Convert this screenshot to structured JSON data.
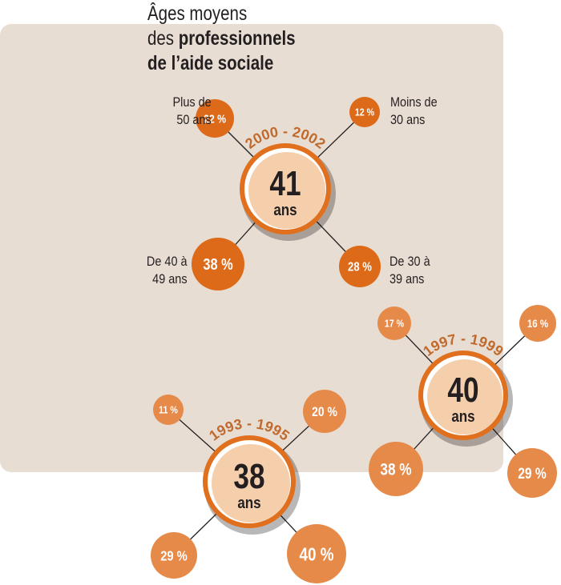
{
  "title": {
    "line1": "Âges moyens",
    "line2_prefix": "des ",
    "line2_bold": "professionnels",
    "line3": "de l’aide sociale"
  },
  "labels": {
    "over50": [
      "Plus de",
      "50 ans"
    ],
    "under30": [
      "Moins de",
      "30 ans"
    ],
    "from40to49": [
      "De 40 à",
      "49 ans"
    ],
    "from30to39": [
      "De 30 à",
      "39 ans"
    ]
  },
  "colors": {
    "panel": "#e8ddd3",
    "dark_orange": "#dd6a19",
    "light_orange": "#e68a4a",
    "center_fill": "#f5cfac",
    "center_ring": "#e0701e",
    "period_text": "#c06a2e",
    "line": "#231f20"
  },
  "chart_data": {
    "type": "bubble",
    "unit_center": "ans",
    "unit_pct": "%",
    "categories": [
      "Plus de 50 ans",
      "Moins de 30 ans",
      "De 40 à 49 ans",
      "De 30 à 39 ans"
    ],
    "series": [
      {
        "period": "2000 - 2002",
        "mean_age": 41,
        "values": [
          22,
          12,
          38,
          28
        ]
      },
      {
        "period": "1997 - 1999",
        "mean_age": 40,
        "values": [
          17,
          16,
          38,
          29
        ]
      },
      {
        "period": "1993 - 1995",
        "mean_age": 38,
        "values": [
          11,
          20,
          29,
          40
        ]
      }
    ]
  }
}
